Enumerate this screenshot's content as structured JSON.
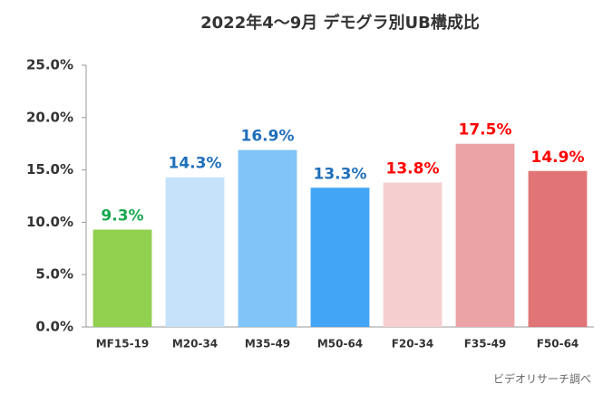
{
  "chart_data": {
    "type": "bar",
    "title": "2022年4～9月 デモグラ別UB構成比",
    "categories": [
      "MF15-19",
      "M20-34",
      "M35-49",
      "M50-64",
      "F20-34",
      "F35-49",
      "F50-64"
    ],
    "values": [
      9.3,
      14.3,
      16.9,
      13.3,
      13.8,
      17.5,
      14.9
    ],
    "value_labels": [
      "9.3%",
      "14.3%",
      "16.9%",
      "13.3%",
      "13.8%",
      "17.5%",
      "14.9%"
    ],
    "colors": [
      "#92d050",
      "#c6e2fa",
      "#80c4f8",
      "#42a5f5",
      "#f5cfcf",
      "#eba3a5",
      "#e07477"
    ],
    "label_colors": [
      "#18a84f",
      "#1f6fba",
      "#1f6fba",
      "#1f6fba",
      "#ff0000",
      "#ff0000",
      "#ff0000"
    ],
    "ylim": [
      0,
      25
    ],
    "yticks": [
      {
        "value": 0,
        "label": "0.0%"
      },
      {
        "value": 5,
        "label": "5.0%"
      },
      {
        "value": 10,
        "label": "10.0%"
      },
      {
        "value": 15,
        "label": "15.0%"
      },
      {
        "value": 20,
        "label": "20.0%"
      },
      {
        "value": 25,
        "label": "25.0%"
      }
    ],
    "grid": false,
    "source": "ビデオリサーチ調べ"
  }
}
